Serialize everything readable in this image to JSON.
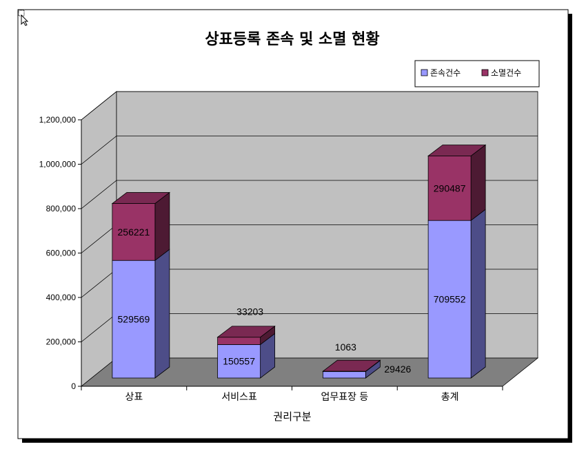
{
  "chart_data": {
    "type": "bar",
    "stacked": true,
    "three_d": true,
    "title": "상표등록 존속 및 소멸 현황",
    "xlabel": "권리구분",
    "ylabel": "",
    "categories": [
      "상표",
      "서비스표",
      "업무표장 등",
      "총계"
    ],
    "series": [
      {
        "name": "존속건수",
        "values": [
          529569,
          150557,
          29426,
          709552
        ]
      },
      {
        "name": "소멸건수",
        "values": [
          256221,
          33203,
          1063,
          290487
        ]
      }
    ],
    "ylim": [
      0,
      1200000
    ],
    "y_ticks": [
      "0",
      "200,000",
      "400,000",
      "600,000",
      "800,000",
      "1,000,000",
      "1,200,000"
    ],
    "legend_position": "top-right",
    "grid": true,
    "colors": {
      "series1": "#9999ff",
      "series1_side": "#4d4d88",
      "series1_top": "#b3b3ff",
      "series2": "#993366",
      "series2_side": "#4d1a33",
      "series2_top": "#7a2952",
      "wall": "#c0c0c0",
      "floor": "#808080"
    }
  }
}
